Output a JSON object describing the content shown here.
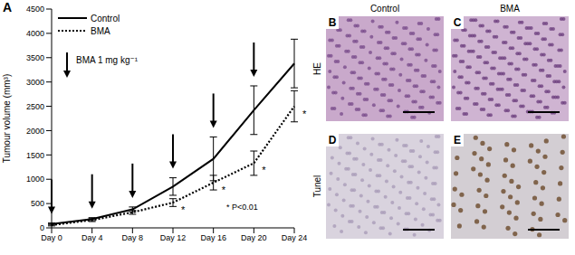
{
  "chart_data": {
    "type": "line",
    "panel": "A",
    "y_label": "Tumour volume (mm³)",
    "categories": [
      "Day 0",
      "Day 4",
      "Day 8",
      "Day 12",
      "Day 16",
      "Day 20",
      "Day 24"
    ],
    "series": [
      {
        "name": "Control",
        "color": "#000000",
        "line_style": "solid",
        "values": [
          80,
          180,
          380,
          850,
          1420,
          2420,
          3380
        ],
        "errors": [
          20,
          30,
          50,
          180,
          450,
          500,
          500
        ]
      },
      {
        "name": "BMA",
        "color": "#000000",
        "line_style": "dotted",
        "values": [
          60,
          160,
          320,
          520,
          930,
          1330,
          2500
        ],
        "errors": [
          20,
          30,
          40,
          80,
          150,
          250,
          320
        ]
      }
    ],
    "ylim": [
      0,
      4500
    ],
    "yticks": [
      0,
      500,
      1000,
      1500,
      2000,
      2500,
      3000,
      3500,
      4000,
      4500
    ],
    "grid": false,
    "legend": "upper left",
    "annotations": {
      "dose_label": "BMA 1 mg kg⁻¹",
      "dose_days": [
        "Day 0",
        "Day 4",
        "Day 8",
        "Day 12",
        "Day 16",
        "Day 20"
      ],
      "significance_symbol": "*",
      "significant_days": [
        "Day 12",
        "Day 16",
        "Day 20",
        "Day 24"
      ],
      "note": "* P<0.01"
    }
  },
  "figure_panels": {
    "columns": [
      "Control",
      "BMA"
    ],
    "rows": [
      "HE",
      "Tunel"
    ],
    "labels": [
      [
        "B",
        "C"
      ],
      [
        "D",
        "E"
      ]
    ]
  }
}
